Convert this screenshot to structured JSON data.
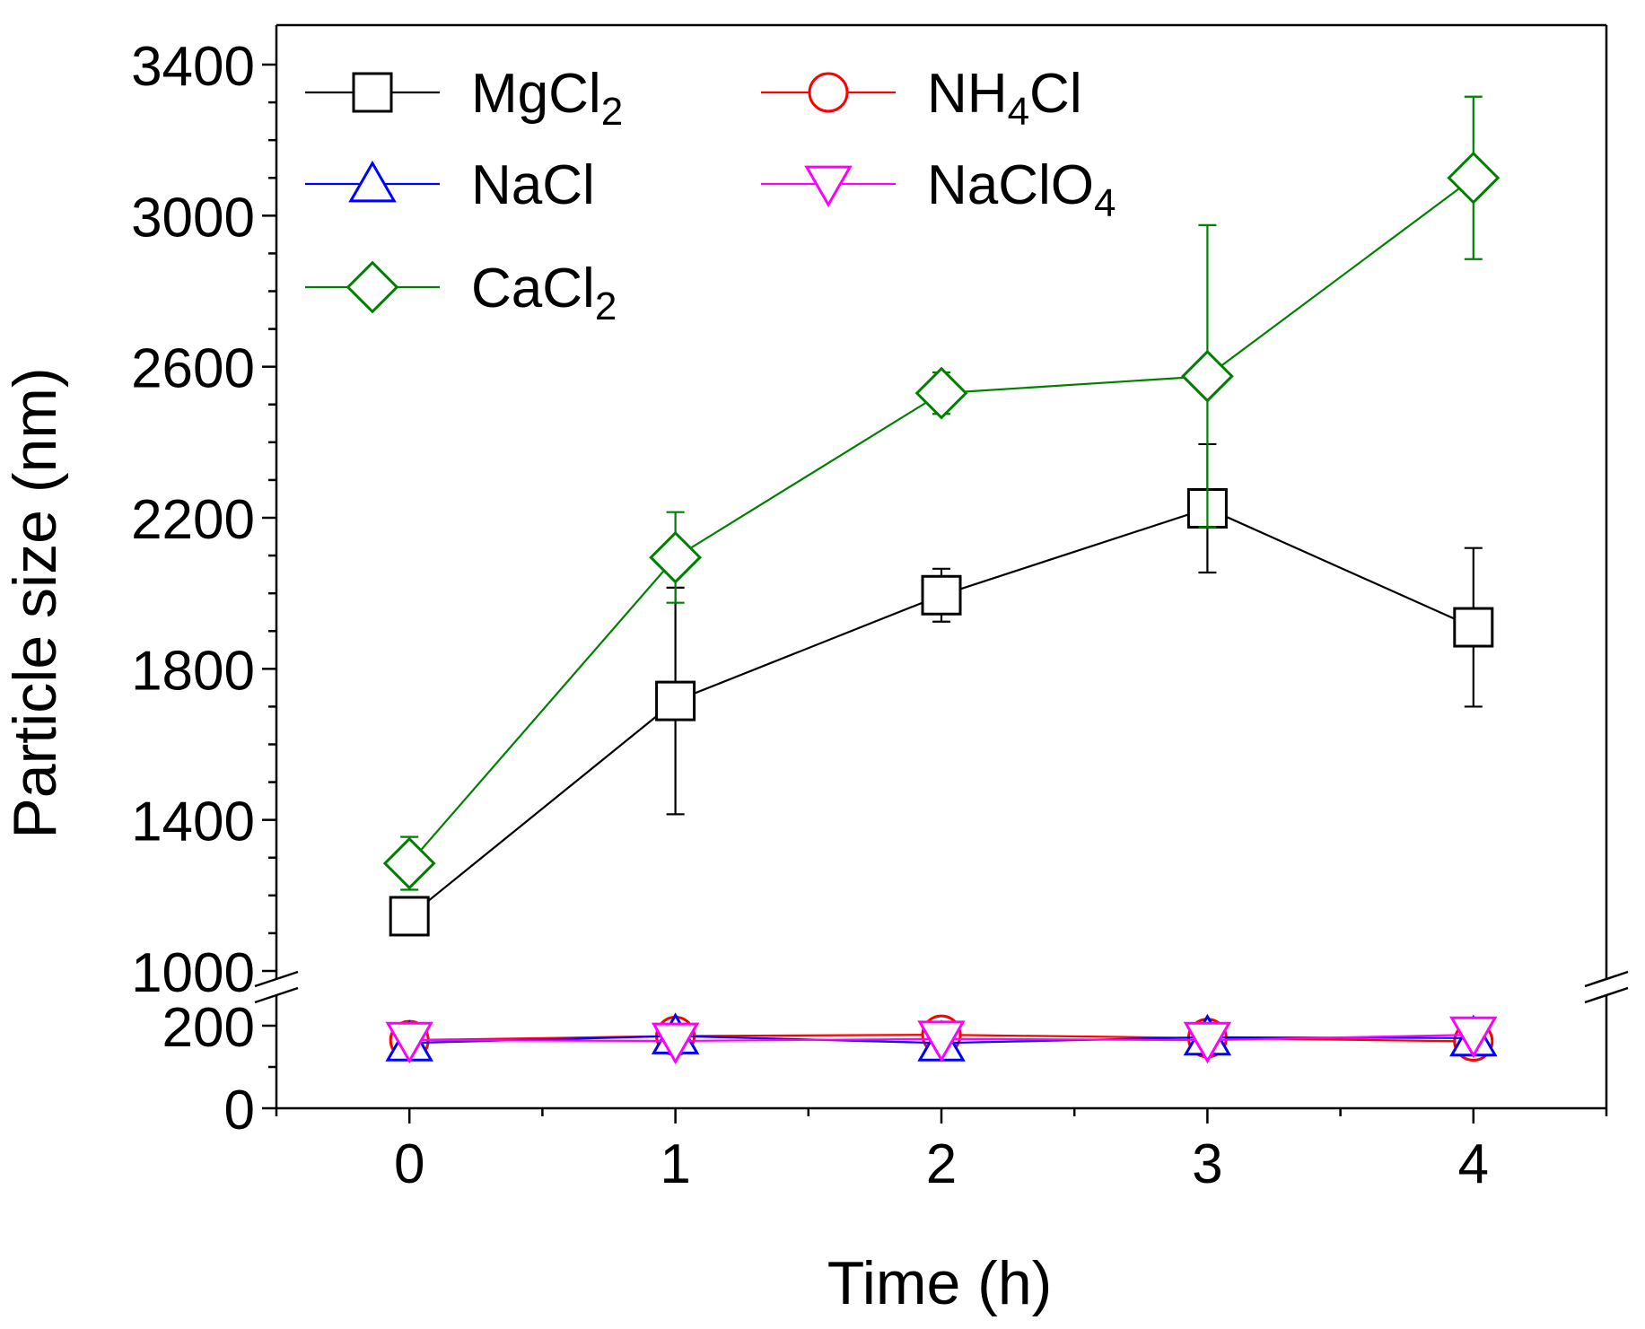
{
  "chart_data": {
    "type": "line",
    "title": "",
    "xlabel": "Time (h)",
    "ylabel": "Particle size (nm)",
    "x": [
      0,
      1,
      2,
      3,
      4
    ],
    "xlim": [
      -0.5,
      4.5
    ],
    "x_ticks": [
      "0",
      "1",
      "2",
      "3",
      "4"
    ],
    "y_axis_break": true,
    "upper_ylim": [
      1000,
      3400
    ],
    "upper_ticks": [
      "1000",
      "1400",
      "1800",
      "2200",
      "2600",
      "3000",
      "3400"
    ],
    "lower_ylim": [
      0,
      250
    ],
    "lower_ticks": [
      "0",
      "200"
    ],
    "legend_placement": "top-left",
    "series": [
      {
        "name": "MgCl2",
        "label_main": "MgCl",
        "label_sub": "2",
        "label_tail": "",
        "color": "#000000",
        "marker": "square",
        "values": [
          1145,
          1715,
          1995,
          2225,
          1910
        ],
        "errors": [
          40,
          300,
          70,
          170,
          210
        ]
      },
      {
        "name": "NH4Cl",
        "label_main": "NH",
        "label_sub": "4",
        "label_tail": "Cl",
        "color": "#ff0000",
        "marker": "circle",
        "values": [
          165,
          175,
          178,
          170,
          162
        ],
        "errors": [
          12,
          15,
          15,
          15,
          15
        ]
      },
      {
        "name": "NaCl",
        "label_main": "NaCl",
        "label_sub": "",
        "label_tail": "",
        "color": "#0000ff",
        "marker": "triangle-up",
        "values": [
          158,
          175,
          158,
          172,
          170
        ],
        "errors": [
          12,
          15,
          15,
          15,
          15
        ]
      },
      {
        "name": "NaClO4",
        "label_main": "NaClO",
        "label_sub": "4",
        "label_tail": "",
        "color": "#ff00ff",
        "marker": "triangle-down",
        "values": [
          165,
          163,
          168,
          165,
          178
        ],
        "errors": [
          12,
          15,
          15,
          15,
          15
        ]
      },
      {
        "name": "CaCl2",
        "label_main": "CaCl",
        "label_sub": "2",
        "label_tail": "",
        "color": "#008000",
        "marker": "diamond",
        "values": [
          1285,
          2095,
          2530,
          2575,
          3100
        ],
        "errors": [
          70,
          120,
          55,
          400,
          215
        ]
      }
    ]
  }
}
